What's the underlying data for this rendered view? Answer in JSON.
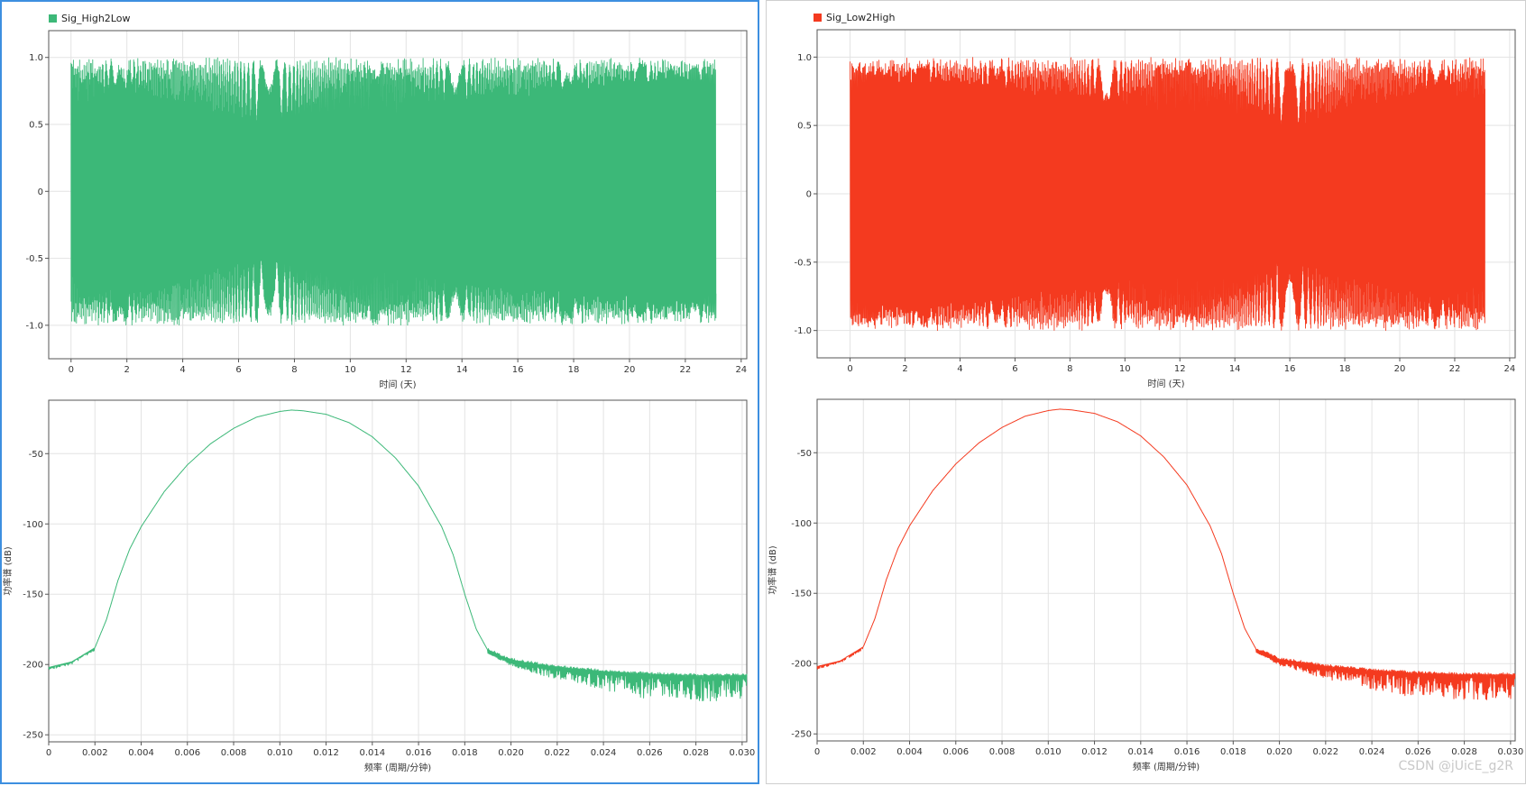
{
  "watermark": "CSDN @jUicE_g2R",
  "chart_data": [
    {
      "type": "line",
      "panel": "left",
      "position": "top",
      "title": "",
      "legend": "Sig_High2Low",
      "legend_placement": "top-left",
      "color": "#3cb878",
      "xlabel": "时间 (天)",
      "ylabel": "",
      "xlim": [
        -0.8,
        24.2
      ],
      "ylim": [
        -1.25,
        1.2
      ],
      "xticks": [
        0,
        2,
        4,
        6,
        8,
        10,
        12,
        14,
        16,
        18,
        20,
        22,
        24
      ],
      "xtick_labels": [
        "0",
        "2",
        "4",
        "6",
        "8",
        "10",
        "12",
        "14",
        "16",
        "18",
        "20",
        "22",
        "24"
      ],
      "yticks": [
        1.0,
        0.5,
        0,
        -0.5,
        -1.0
      ],
      "ytick_labels": [
        "1.0",
        "0.5",
        "0",
        "-0.5",
        "-1.0"
      ],
      "grid": true,
      "signal": {
        "kind": "chirp",
        "direction": "high-to-low",
        "x_start": 0,
        "x_end": 23.1,
        "amplitude": 1.0
      }
    },
    {
      "type": "line",
      "panel": "right",
      "position": "top",
      "title": "",
      "legend": "Sig_Low2High",
      "legend_placement": "top-left",
      "color": "#f43a1f",
      "xlabel": "时间 (天)",
      "ylabel": "",
      "xlim": [
        -1.2,
        24.2
      ],
      "ylim": [
        -1.2,
        1.2
      ],
      "xticks": [
        0,
        2,
        4,
        6,
        8,
        10,
        12,
        14,
        16,
        18,
        20,
        22,
        24
      ],
      "xtick_labels": [
        "0",
        "2",
        "4",
        "6",
        "8",
        "10",
        "12",
        "14",
        "16",
        "18",
        "20",
        "22",
        "24"
      ],
      "yticks": [
        1.0,
        0.5,
        0,
        -0.5,
        -1.0
      ],
      "ytick_labels": [
        "1.0",
        "0.5",
        "0",
        "-0.5",
        "-1.0"
      ],
      "grid": true,
      "signal": {
        "kind": "chirp",
        "direction": "low-to-high",
        "x_start": 0,
        "x_end": 23.1,
        "amplitude": 1.0
      }
    },
    {
      "type": "line",
      "panel": "left",
      "position": "bottom",
      "title": "",
      "color": "#3cb878",
      "xlabel": "频率 (周期/分钟)",
      "ylabel": "功率谱 (dB)",
      "xlim": [
        0,
        0.0302
      ],
      "ylim": [
        -255,
        -12
      ],
      "xticks": [
        0,
        0.002,
        0.004,
        0.006,
        0.008,
        0.01,
        0.012,
        0.014,
        0.016,
        0.018,
        0.02,
        0.022,
        0.024,
        0.026,
        0.028,
        0.03
      ],
      "xtick_labels": [
        "0",
        "0.002",
        "0.004",
        "0.006",
        "0.008",
        "0.010",
        "0.012",
        "0.014",
        "0.016",
        "0.018",
        "0.020",
        "0.022",
        "0.024",
        "0.026",
        "0.028",
        "0.030"
      ],
      "yticks": [
        -50,
        -100,
        -150,
        -200,
        -250
      ],
      "ytick_labels": [
        "-50",
        "-100",
        "-150",
        "-200",
        "-250"
      ],
      "grid": true,
      "spectrum": {
        "x": [
          0,
          0.001,
          0.002,
          0.0025,
          0.003,
          0.0035,
          0.004,
          0.005,
          0.006,
          0.007,
          0.008,
          0.009,
          0.01,
          0.0105,
          0.011,
          0.012,
          0.013,
          0.014,
          0.015,
          0.016,
          0.017,
          0.0175,
          0.018,
          0.0185,
          0.019,
          0.02,
          0.022,
          0.024,
          0.026,
          0.028,
          0.03,
          0.0302
        ],
        "y": [
          -202,
          -198,
          -188,
          -168,
          -140,
          -118,
          -102,
          -77,
          -58,
          -43,
          -32,
          -24,
          -20,
          -19,
          -19.5,
          -22,
          -28,
          -38,
          -53,
          -73,
          -102,
          -122,
          -150,
          -175,
          -190,
          -197,
          -202,
          -205,
          -207,
          -208,
          -208,
          -208
        ]
      }
    },
    {
      "type": "line",
      "panel": "right",
      "position": "bottom",
      "title": "",
      "color": "#f43a1f",
      "xlabel": "频率 (周期/分钟)",
      "ylabel": "功率谱 (dB)",
      "xlim": [
        0,
        0.0302
      ],
      "ylim": [
        -255,
        -12
      ],
      "xticks": [
        0,
        0.002,
        0.004,
        0.006,
        0.008,
        0.01,
        0.012,
        0.014,
        0.016,
        0.018,
        0.02,
        0.022,
        0.024,
        0.026,
        0.028,
        0.03
      ],
      "xtick_labels": [
        "0",
        "0.002",
        "0.004",
        "0.006",
        "0.008",
        "0.010",
        "0.012",
        "0.014",
        "0.016",
        "0.018",
        "0.020",
        "0.022",
        "0.024",
        "0.026",
        "0.028",
        "0.030"
      ],
      "yticks": [
        -50,
        -100,
        -150,
        -200,
        -250
      ],
      "ytick_labels": [
        "-50",
        "-100",
        "-150",
        "-200",
        "-250"
      ],
      "grid": true,
      "spectrum": {
        "x": [
          0,
          0.001,
          0.002,
          0.0025,
          0.003,
          0.0035,
          0.004,
          0.005,
          0.006,
          0.007,
          0.008,
          0.009,
          0.01,
          0.0105,
          0.011,
          0.012,
          0.013,
          0.014,
          0.015,
          0.016,
          0.017,
          0.0175,
          0.018,
          0.0185,
          0.019,
          0.02,
          0.022,
          0.024,
          0.026,
          0.028,
          0.03,
          0.0302
        ],
        "y": [
          -202,
          -198,
          -188,
          -168,
          -140,
          -118,
          -102,
          -77,
          -58,
          -43,
          -32,
          -24,
          -20,
          -19,
          -19.5,
          -22,
          -28,
          -38,
          -53,
          -73,
          -102,
          -122,
          -150,
          -175,
          -190,
          -197,
          -202,
          -205,
          -207,
          -208,
          -208,
          -208
        ]
      }
    }
  ]
}
